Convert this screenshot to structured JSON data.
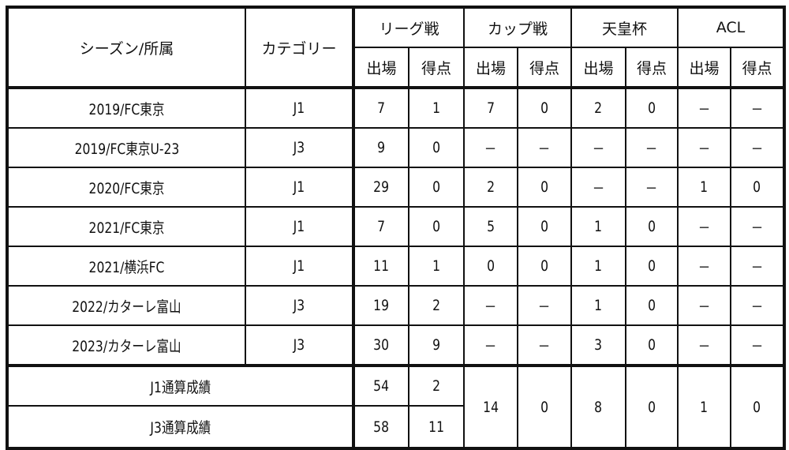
{
  "headers": {
    "season_club": "シーズン/所属",
    "category": "カテゴリー",
    "groups": [
      "リーグ戦",
      "カップ戦",
      "天皇杯",
      "ACL"
    ],
    "apps": "出場",
    "goals": "得点"
  },
  "rows": [
    {
      "season": "2019/FC東京",
      "cat": "J1",
      "v": [
        "7",
        "1",
        "7",
        "0",
        "2",
        "0",
        "－",
        "－"
      ]
    },
    {
      "season": "2019/FC東京U-23",
      "cat": "J3",
      "v": [
        "9",
        "0",
        "－",
        "－",
        "－",
        "－",
        "－",
        "－"
      ]
    },
    {
      "season": "2020/FC東京",
      "cat": "J1",
      "v": [
        "29",
        "0",
        "2",
        "0",
        "－",
        "－",
        "1",
        "0"
      ]
    },
    {
      "season": "2021/FC東京",
      "cat": "J1",
      "v": [
        "7",
        "0",
        "5",
        "0",
        "1",
        "0",
        "－",
        "－"
      ]
    },
    {
      "season": "2021/横浜FC",
      "cat": "J1",
      "v": [
        "11",
        "1",
        "0",
        "0",
        "1",
        "0",
        "－",
        "－"
      ]
    },
    {
      "season": "2022/カターレ富山",
      "cat": "J3",
      "v": [
        "19",
        "2",
        "－",
        "－",
        "1",
        "0",
        "－",
        "－"
      ]
    },
    {
      "season": "2023/カターレ富山",
      "cat": "J3",
      "v": [
        "30",
        "9",
        "－",
        "－",
        "3",
        "0",
        "－",
        "－"
      ]
    }
  ],
  "totals": {
    "j1": {
      "label": "J1通算成績",
      "apps": "54",
      "goals": "2"
    },
    "j3": {
      "label": "J3通算成績",
      "apps": "58",
      "goals": "11"
    },
    "shared": [
      "14",
      "0",
      "8",
      "0",
      "1",
      "0"
    ]
  }
}
